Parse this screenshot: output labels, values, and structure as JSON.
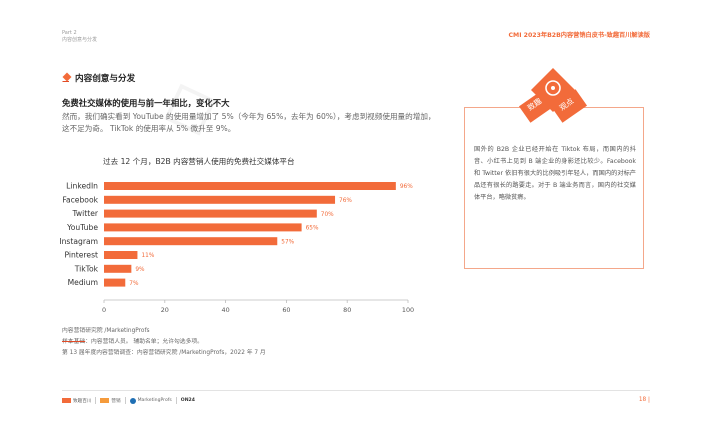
{
  "header": {
    "part": "Part 2",
    "part_sub": "内容创意与分发",
    "report_title": "CMI 2023年B2B内容营销白皮书-致趣百川解读版"
  },
  "section": {
    "title": "内容创意与分发"
  },
  "lead": "免费社交媒体的使用与前一年相比，变化不大",
  "body_lines": [
    "然而，我们确实看到 YouTube 的使用量增加了 5%（今年为 65%，去年为 60%），考虑到视频使用量的增加，",
    "这不足为奇。 TikTok 的使用率从 5% 微升至 9%。"
  ],
  "insight": {
    "badge_left": "致趣",
    "badge_right": "观点",
    "text": "国外的 B2B 企业已经开始在 Tiktok 布局，而国内的抖音、小红书上见到 B 端企业的身影还比较少。Facebook 和 Twitter 依旧有很大的比例吸引年轻人，而国内的对标产品还有很长的路要走。对于 B 端业务而言，国内的社交媒体平台，略微贫瘠。"
  },
  "chart_data": {
    "type": "bar",
    "orientation": "horizontal",
    "title": "过去 12 个月，B2B 内容营销人使用的免费社交媒体平台",
    "categories": [
      "LinkedIn",
      "Facebook",
      "Twitter",
      "YouTube",
      "Instagram",
      "Pinterest",
      "TikTok",
      "Medium"
    ],
    "values": [
      96,
      76,
      70,
      65,
      57,
      11,
      9,
      7
    ],
    "value_labels": [
      "96%",
      "76%",
      "70%",
      "65%",
      "57%",
      "11%",
      "9%",
      "7%"
    ],
    "x_ticks": [
      "0",
      "20",
      "40",
      "60",
      "80",
      "100"
    ],
    "xlim": [
      0,
      100
    ],
    "bar_color": "#f26b3a",
    "label_color": "#f26b3a"
  },
  "sources": {
    "line1": "内容营销研究院 /MarketingProfs",
    "line2_label": "样本基础",
    "line2_text": "：内容营销人员。 辅助名单；允许勾选多项。",
    "line3": "第 13 届年度内容营销调查：内容营销研究院 /MarketingProfs，2022 年 7 月"
  },
  "footer": {
    "logo1": "致趣百川",
    "logo2": "营销",
    "logo3": "MarketingProfs",
    "logo4": "ON24",
    "page_number": "18"
  },
  "colors": {
    "accent": "#f26b3a",
    "insight_border": "#f4a78a"
  }
}
